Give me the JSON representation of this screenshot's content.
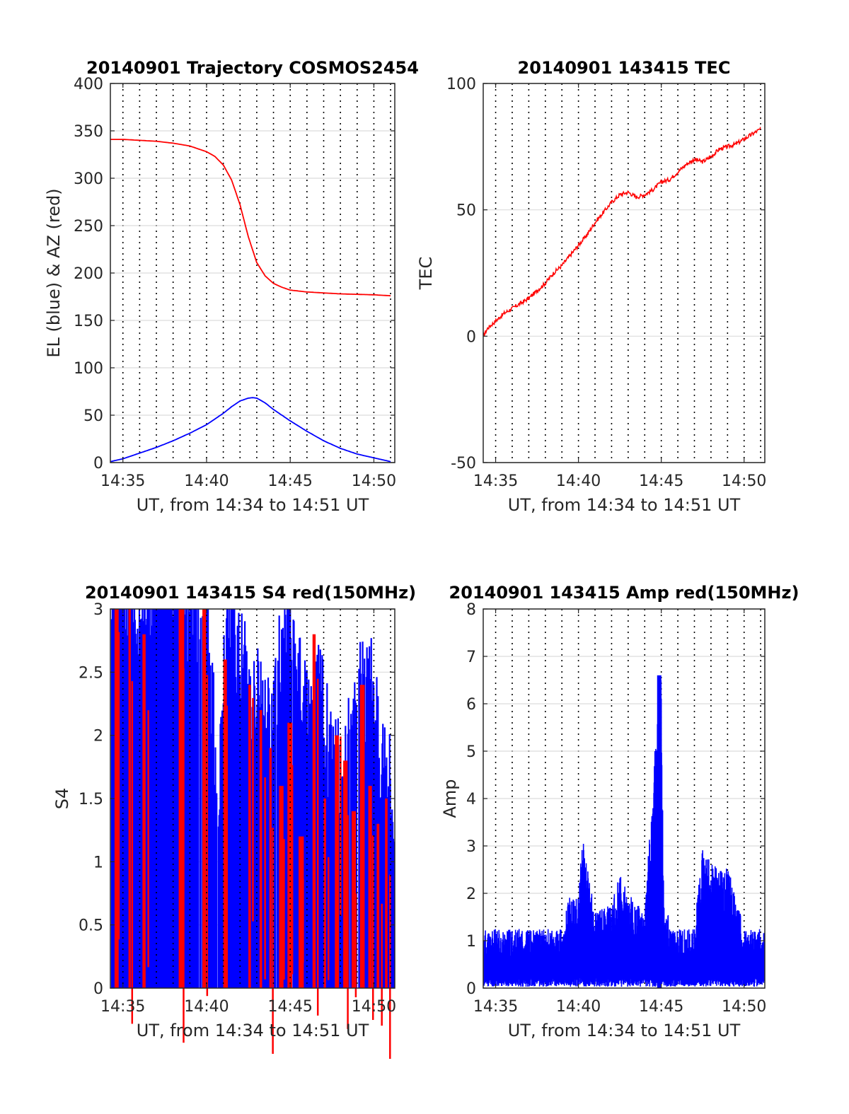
{
  "charts": {
    "trajectory": {
      "title": "20140901 Trajectory COSMOS2454",
      "xlabel": "UT, from 14:34 to 14:51 UT",
      "ylabel": "EL (blue) & AZ (red)"
    },
    "tec": {
      "title": "20140901 143415 TEC",
      "xlabel": "UT, from 14:34 to 14:51 UT",
      "ylabel": "TEC"
    },
    "s4": {
      "title": "20140901 143415 S4 red(150MHz)",
      "xlabel": "UT, from 14:34 to 14:51 UT",
      "ylabel": "S4"
    },
    "amp": {
      "title": "20140901 143415 Amp red(150MHz)",
      "xlabel": "UT, from 14:34 to 14:51 UT",
      "ylabel": "Amp"
    }
  },
  "colors": {
    "az": "#ff0000",
    "el": "#0000ff",
    "tec": "#ff0000",
    "s4_red": "#ff0000",
    "s4_blue": "#0000ff",
    "amp": "#0000ff",
    "grid": "#dcdcdc"
  },
  "chart_data": [
    {
      "id": "trajectory",
      "type": "line",
      "title": "20140901 Trajectory COSMOS2454",
      "xlabel": "UT, from 14:34 to 14:51 UT",
      "ylabel": "EL (blue) & AZ (red)",
      "xlim": [
        "14:34:15",
        "14:51:15"
      ],
      "ylim": [
        0,
        400
      ],
      "xticks": [
        "14:35",
        "14:40",
        "14:45",
        "14:50"
      ],
      "yticks": [
        0,
        50,
        100,
        150,
        200,
        250,
        300,
        350,
        400
      ],
      "grid": true,
      "series": [
        {
          "color": "#ff0000",
          "x": [
            "14:34:15",
            "14:35:00",
            "14:36:00",
            "14:37:00",
            "14:38:00",
            "14:39:00",
            "14:40:00",
            "14:40:30",
            "14:41:00",
            "14:41:30",
            "14:42:00",
            "14:42:30",
            "14:43:00",
            "14:43:30",
            "14:44:00",
            "14:44:30",
            "14:45:00",
            "14:46:00",
            "14:47:00",
            "14:48:00",
            "14:49:00",
            "14:50:00",
            "14:51:00"
          ],
          "values": [
            341,
            341,
            340,
            339,
            337,
            334,
            328,
            323,
            314,
            298,
            272,
            238,
            211,
            197,
            189,
            185,
            182,
            180,
            179,
            178,
            177.5,
            177,
            176
          ]
        },
        {
          "color": "#0000ff",
          "x": [
            "14:34:15",
            "14:35:00",
            "14:36:00",
            "14:37:00",
            "14:38:00",
            "14:39:00",
            "14:40:00",
            "14:41:00",
            "14:41:30",
            "14:42:00",
            "14:42:30",
            "14:42:45",
            "14:43:00",
            "14:43:30",
            "14:44:00",
            "14:45:00",
            "14:46:00",
            "14:47:00",
            "14:48:00",
            "14:49:00",
            "14:50:00",
            "14:51:00"
          ],
          "values": [
            1,
            4,
            10,
            16,
            23,
            31,
            40,
            52,
            59,
            65,
            68,
            68.5,
            68,
            63,
            56,
            44,
            33,
            23,
            15,
            9,
            5,
            1
          ]
        }
      ]
    },
    {
      "id": "tec",
      "type": "line",
      "title": "20140901 143415 TEC",
      "xlabel": "UT, from 14:34 to 14:51 UT",
      "ylabel": "TEC",
      "xlim": [
        "14:34:15",
        "14:51:15"
      ],
      "ylim": [
        -50,
        100
      ],
      "xticks": [
        "14:35",
        "14:40",
        "14:45",
        "14:50"
      ],
      "yticks": [
        -50,
        0,
        50,
        100
      ],
      "grid": true,
      "series": [
        {
          "color": "#ff0000",
          "x": [
            "14:34:15",
            "14:34:30",
            "14:35:00",
            "14:35:30",
            "14:36:00",
            "14:36:30",
            "14:37:00",
            "14:37:30",
            "14:38:00",
            "14:38:30",
            "14:39:00",
            "14:39:30",
            "14:40:00",
            "14:40:30",
            "14:41:00",
            "14:41:30",
            "14:42:00",
            "14:42:30",
            "14:43:00",
            "14:43:30",
            "14:44:00",
            "14:44:30",
            "14:45:00",
            "14:45:30",
            "14:46:00",
            "14:46:30",
            "14:47:00",
            "14:47:30",
            "14:48:00",
            "14:48:30",
            "14:49:00",
            "14:49:30",
            "14:50:00",
            "14:50:30",
            "14:51:00"
          ],
          "values": [
            0,
            3,
            6,
            9,
            11,
            13,
            15,
            18,
            21,
            25,
            28,
            32,
            36,
            40,
            45,
            49,
            53,
            56,
            57,
            55,
            56,
            58,
            61,
            62,
            65,
            68,
            70,
            69,
            71,
            74,
            75,
            76,
            78,
            80,
            82
          ]
        }
      ]
    },
    {
      "id": "s4",
      "type": "bar",
      "title": "20140901 143415 S4 red(150MHz)",
      "xlabel": "UT, from 14:34 to 14:51 UT",
      "ylabel": "S4",
      "xlim": [
        "14:34:15",
        "14:51:15"
      ],
      "ylim": [
        0,
        3
      ],
      "xticks": [
        "14:35",
        "14:40",
        "14:45",
        "14:50"
      ],
      "yticks": [
        0,
        0.5,
        1,
        1.5,
        2,
        2.5,
        3
      ],
      "grid": true,
      "series": [
        {
          "color": "#ff0000",
          "x": [
            "14:34:30",
            "14:35:20",
            "14:36:10",
            "14:38:20",
            "14:39:45",
            "14:41:00",
            "14:42:30",
            "14:43:10",
            "14:43:45",
            "14:44:20",
            "14:44:50",
            "14:45:30",
            "14:46:20",
            "14:47:00",
            "14:47:40",
            "14:48:10",
            "14:48:40",
            "14:49:10",
            "14:49:40",
            "14:50:10",
            "14:50:40"
          ],
          "values": [
            3,
            3,
            2.8,
            3,
            3,
            2.6,
            2.4,
            2.2,
            1.9,
            1.6,
            2.1,
            1.2,
            2.8,
            1.5,
            2.0,
            1.8,
            1.4,
            2.4,
            1.6,
            1.3,
            1.5
          ]
        },
        {
          "color": "#0000ff",
          "x": [
            "14:34:20",
            "14:35:00",
            "14:36:00",
            "14:37:00",
            "14:38:00",
            "14:39:00",
            "14:40:00",
            "14:40:40",
            "14:41:20",
            "14:42:00",
            "14:42:40",
            "14:43:20",
            "14:44:00",
            "14:44:40",
            "14:45:20",
            "14:46:00",
            "14:46:40",
            "14:47:20",
            "14:48:00",
            "14:48:40",
            "14:49:20",
            "14:50:00",
            "14:50:40"
          ],
          "values": [
            3,
            3,
            3,
            3,
            3,
            3,
            3,
            1.5,
            3,
            2.7,
            2.4,
            2.3,
            2.0,
            3,
            2.5,
            2.2,
            2.6,
            1.9,
            1.7,
            2.0,
            2.4,
            2.3,
            1.6
          ]
        }
      ]
    },
    {
      "id": "amp",
      "type": "line",
      "title": "20140901 143415 Amp red(150MHz)",
      "xlabel": "UT, from 14:34 to 14:51 UT",
      "ylabel": "Amp",
      "xlim": [
        "14:34:15",
        "14:51:15"
      ],
      "ylim": [
        0,
        8
      ],
      "xticks": [
        "14:35",
        "14:40",
        "14:45",
        "14:50"
      ],
      "yticks": [
        0,
        1,
        2,
        3,
        4,
        5,
        6,
        7,
        8
      ],
      "grid": true,
      "series": [
        {
          "color": "#0000ff",
          "x": [
            "14:34:15",
            "14:35:00",
            "14:36:00",
            "14:37:00",
            "14:38:00",
            "14:39:00",
            "14:39:30",
            "14:40:00",
            "14:40:15",
            "14:40:30",
            "14:41:00",
            "14:42:00",
            "14:42:30",
            "14:43:00",
            "14:44:00",
            "14:44:50",
            "14:45:00",
            "14:45:10",
            "14:46:00",
            "14:47:00",
            "14:47:30",
            "14:48:00",
            "14:48:30",
            "14:49:00",
            "14:49:30",
            "14:50:00",
            "14:51:00"
          ],
          "values": [
            1.3,
            1.4,
            1.4,
            1.4,
            1.5,
            1.3,
            2.0,
            1.9,
            3.3,
            2.6,
            1.6,
            1.8,
            2.4,
            2.0,
            1.6,
            6.4,
            6.6,
            1.7,
            1.4,
            1.3,
            3.0,
            2.7,
            2.5,
            2.6,
            1.9,
            1.4,
            1.4
          ]
        }
      ]
    }
  ]
}
